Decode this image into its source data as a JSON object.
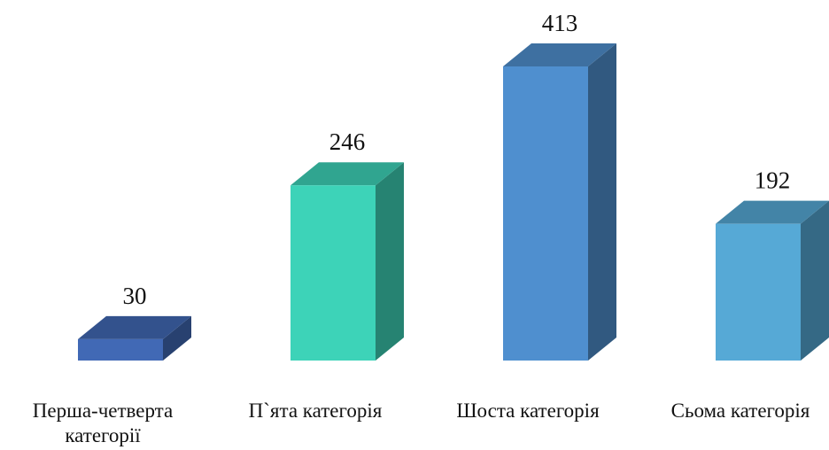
{
  "chart_data": {
    "type": "bar3d",
    "categories": [
      "Перша-четверта категорії",
      "П`ята категорія",
      "Шоста категорія",
      "Сьома категорія"
    ],
    "values": [
      30,
      246,
      413,
      192
    ],
    "colors": [
      "#4169b5",
      "#3dd3b8",
      "#4f8fcf",
      "#56a9d6"
    ]
  }
}
